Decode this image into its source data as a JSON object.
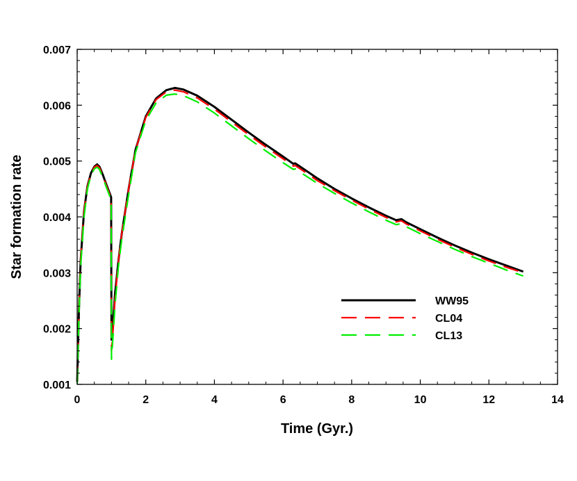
{
  "chart_data": {
    "type": "line",
    "title": "",
    "xlabel": "Time (Gyr.)",
    "ylabel": "Star formation rate",
    "xlim": [
      0,
      14
    ],
    "ylim": [
      0.001,
      0.007
    ],
    "xticks": [
      0,
      2,
      4,
      6,
      8,
      10,
      12,
      14
    ],
    "xtick_labels": [
      "0",
      "2",
      "4",
      "6",
      "8",
      "10",
      "12",
      "14"
    ],
    "yticks": [
      0.001,
      0.002,
      0.003,
      0.004,
      0.005,
      0.006,
      0.007
    ],
    "ytick_labels": [
      "0.001",
      "0.002",
      "0.003",
      "0.004",
      "0.005",
      "0.006",
      "0.007"
    ],
    "grid": false,
    "legend_position": "lower-right",
    "series": [
      {
        "name": "WW95",
        "color": "#000000",
        "style": "solid",
        "x": [
          0,
          0.05,
          0.1,
          0.2,
          0.3,
          0.4,
          0.5,
          0.58,
          0.65,
          0.75,
          0.85,
          0.95,
          0.99,
          1.0,
          1.05,
          1.1,
          1.2,
          1.3,
          1.5,
          1.7,
          2.0,
          2.3,
          2.6,
          2.85,
          3.1,
          3.5,
          4.0,
          4.5,
          5.0,
          5.5,
          6.0,
          6.3,
          6.35,
          6.5,
          7.0,
          7.5,
          8.0,
          8.5,
          9.0,
          9.3,
          9.45,
          9.6,
          10.0,
          10.5,
          11.0,
          11.5,
          12.0,
          12.5,
          13.0
        ],
        "values": [
          0.00105,
          0.0023,
          0.0032,
          0.0041,
          0.00455,
          0.00478,
          0.0049,
          0.00494,
          0.0049,
          0.00475,
          0.00458,
          0.00442,
          0.00435,
          0.0018,
          0.0021,
          0.0026,
          0.0032,
          0.0037,
          0.0045,
          0.0052,
          0.0058,
          0.00612,
          0.00627,
          0.00631,
          0.00628,
          0.00617,
          0.00597,
          0.00574,
          0.00551,
          0.00529,
          0.00508,
          0.00495,
          0.00496,
          0.0049,
          0.00469,
          0.0045,
          0.00433,
          0.00417,
          0.00402,
          0.00394,
          0.00396,
          0.0039,
          0.00378,
          0.00363,
          0.00349,
          0.00336,
          0.00324,
          0.00313,
          0.00302
        ]
      },
      {
        "name": "CL04",
        "color": "#ff0000",
        "style": "dashed",
        "x": [
          0,
          0.05,
          0.1,
          0.2,
          0.3,
          0.4,
          0.5,
          0.58,
          0.65,
          0.75,
          0.85,
          0.95,
          0.99,
          1.0,
          1.05,
          1.1,
          1.2,
          1.3,
          1.5,
          1.7,
          2.0,
          2.3,
          2.6,
          2.85,
          3.1,
          3.5,
          4.0,
          4.5,
          5.0,
          5.5,
          6.0,
          6.3,
          6.35,
          6.5,
          7.0,
          7.5,
          8.0,
          8.5,
          9.0,
          9.3,
          9.45,
          9.6,
          10.0,
          10.5,
          11.0,
          11.5,
          12.0,
          12.5,
          13.0
        ],
        "values": [
          0.00105,
          0.0023,
          0.0032,
          0.0041,
          0.00454,
          0.00477,
          0.00489,
          0.00492,
          0.00488,
          0.00473,
          0.00456,
          0.0044,
          0.00433,
          0.0016,
          0.002,
          0.0025,
          0.0032,
          0.0037,
          0.0045,
          0.0052,
          0.00578,
          0.0061,
          0.00624,
          0.00627,
          0.00624,
          0.00613,
          0.00593,
          0.0057,
          0.00547,
          0.00525,
          0.00504,
          0.00491,
          0.00492,
          0.00486,
          0.00465,
          0.00447,
          0.0043,
          0.00414,
          0.00399,
          0.00391,
          0.00393,
          0.00387,
          0.00375,
          0.0036,
          0.00346,
          0.00333,
          0.00321,
          0.0031,
          0.003
        ]
      },
      {
        "name": "CL13",
        "color": "#00ee00",
        "style": "dashed",
        "x": [
          0,
          0.05,
          0.1,
          0.2,
          0.3,
          0.4,
          0.5,
          0.58,
          0.65,
          0.75,
          0.85,
          0.95,
          0.99,
          1.0,
          1.05,
          1.1,
          1.2,
          1.3,
          1.5,
          1.7,
          2.0,
          2.3,
          2.6,
          2.85,
          3.1,
          3.5,
          4.0,
          4.5,
          5.0,
          5.5,
          6.0,
          6.3,
          6.35,
          6.5,
          7.0,
          7.5,
          8.0,
          8.5,
          9.0,
          9.3,
          9.45,
          9.6,
          10.0,
          10.5,
          11.0,
          11.5,
          12.0,
          12.5,
          13.0
        ],
        "values": [
          0.00102,
          0.0022,
          0.0031,
          0.004,
          0.0045,
          0.00474,
          0.00486,
          0.00489,
          0.00485,
          0.0047,
          0.00453,
          0.00437,
          0.0043,
          0.00145,
          0.0019,
          0.0024,
          0.0031,
          0.0036,
          0.0044,
          0.00515,
          0.00573,
          0.00604,
          0.00618,
          0.0062,
          0.00617,
          0.00606,
          0.00586,
          0.00563,
          0.0054,
          0.00518,
          0.00497,
          0.00485,
          0.00486,
          0.0048,
          0.0046,
          0.00442,
          0.00425,
          0.00409,
          0.00394,
          0.00386,
          0.00388,
          0.00382,
          0.0037,
          0.00356,
          0.00342,
          0.00329,
          0.00317,
          0.00305,
          0.00294
        ]
      }
    ]
  }
}
